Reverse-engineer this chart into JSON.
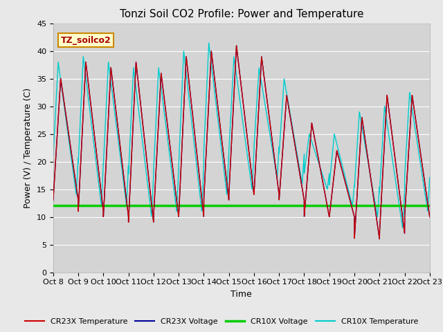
{
  "title": "Tonzi Soil CO2 Profile: Power and Temperature",
  "ylabel": "Power (V) / Temperature (C)",
  "xlabel": "Time",
  "ylim": [
    0,
    45
  ],
  "xlim": [
    0,
    15
  ],
  "x_tick_labels": [
    "Oct 8",
    "Oct 9",
    "Oct 10",
    "Oct 11",
    "Oct 12",
    "Oct 13",
    "Oct 14",
    "Oct 15",
    "Oct 16",
    "Oct 17",
    "Oct 18",
    "Oct 19",
    "Oct 20",
    "Oct 21",
    "Oct 22",
    "Oct 23"
  ],
  "background_color": "#e8e8e8",
  "plot_bg_color": "#d4d4d4",
  "cr23x_temp_color": "#cc0000",
  "cr23x_volt_color": "#000099",
  "cr10x_volt_color": "#00cc00",
  "cr10x_temp_color": "#00cccc",
  "cr10x_volt_value": 12.0,
  "label_box_facecolor": "#ffffcc",
  "label_box_edgecolor": "#cc8800",
  "label_text": "TZ_soilco2",
  "legend_labels": [
    "CR23X Temperature",
    "CR23X Voltage",
    "CR10X Voltage",
    "CR10X Temperature"
  ],
  "legend_colors": [
    "#cc0000",
    "#000099",
    "#00cc00",
    "#00cccc"
  ],
  "grid_color": "#ffffff",
  "spine_color": "#aaaaaa",
  "title_fontsize": 11,
  "label_fontsize": 9,
  "tick_fontsize": 8
}
